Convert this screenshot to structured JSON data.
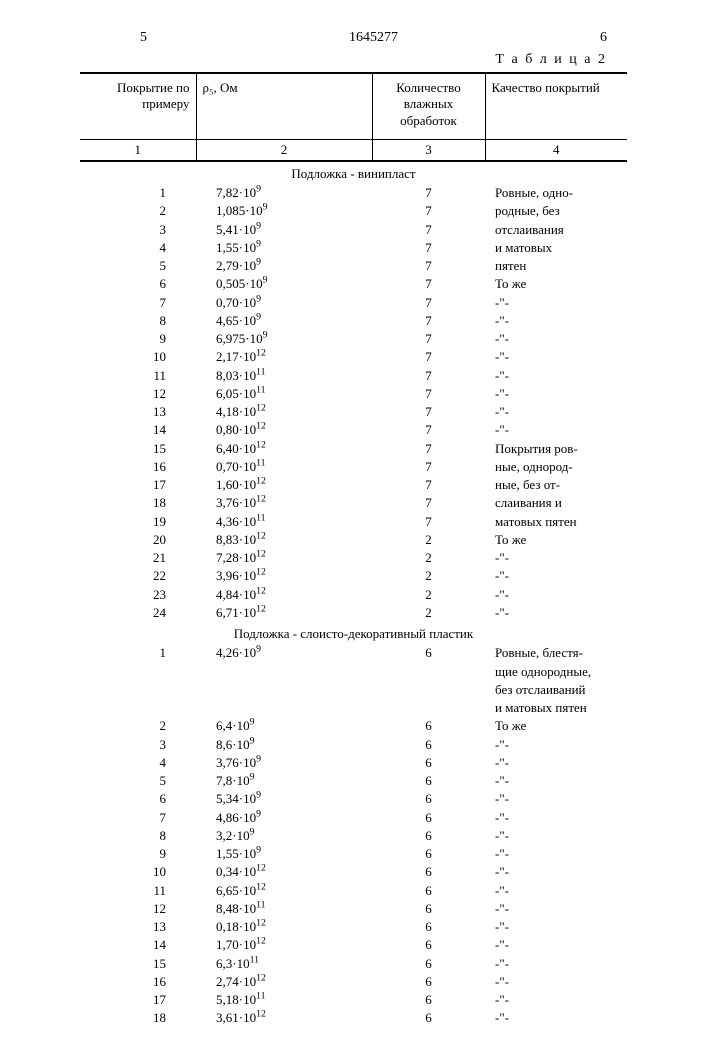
{
  "header": {
    "leftPage": "5",
    "docNumber": "1645277",
    "rightPage": "6"
  },
  "tableLabel": "Т а б л и ц а 2",
  "columns": {
    "h1": "Покрытие по примеру",
    "h2": "ρ₅, Ом",
    "h3": "Количество влажных обработок",
    "h4": "Качество покрытий",
    "n1": "1",
    "n2": "2",
    "n3": "3",
    "n4": "4"
  },
  "section1": "Подложка - винипласт",
  "rows1": [
    {
      "n": "1",
      "rho": "7,82·10⁹",
      "k": "7",
      "q": "Ровные, одно-"
    },
    {
      "n": "2",
      "rho": "1,085·10⁹",
      "k": "7",
      "q": "родные, без"
    },
    {
      "n": "3",
      "rho": "5,41·10⁹",
      "k": "7",
      "q": "отслаивания"
    },
    {
      "n": "4",
      "rho": "1,55·10⁹",
      "k": "7",
      "q": "и матовых"
    },
    {
      "n": "5",
      "rho": "2,79·10⁹",
      "k": "7",
      "q": "пятен"
    },
    {
      "n": "6",
      "rho": "0,505·10⁹",
      "k": "7",
      "q": "То же"
    },
    {
      "n": "7",
      "rho": "0,70·10⁹",
      "k": "7",
      "q": "-\"-"
    },
    {
      "n": "8",
      "rho": "4,65·10⁹",
      "k": "7",
      "q": "-\"-"
    },
    {
      "n": "9",
      "rho": "6,975·10⁹",
      "k": "7",
      "q": "-\"-"
    },
    {
      "n": "10",
      "rho": "2,17·10¹²",
      "k": "7",
      "q": "-\"-"
    },
    {
      "n": "11",
      "rho": "8,03·10¹¹",
      "k": "7",
      "q": "-\"-"
    },
    {
      "n": "12",
      "rho": "6,05·10¹¹",
      "k": "7",
      "q": "-\"-"
    },
    {
      "n": "13",
      "rho": "4,18·10¹²",
      "k": "7",
      "q": "-\"-"
    },
    {
      "n": "14",
      "rho": "0,80·10¹²",
      "k": "7",
      "q": "-\"-"
    },
    {
      "n": "15",
      "rho": "6,40·10¹²",
      "k": "7",
      "q": "Покрытия ров-"
    },
    {
      "n": "16",
      "rho": "0,70·10¹¹",
      "k": "7",
      "q": "ные, однород-"
    },
    {
      "n": "17",
      "rho": "1,60·10¹²",
      "k": "7",
      "q": "ные, без от-"
    },
    {
      "n": "18",
      "rho": "3,76·10¹²",
      "k": "7",
      "q": "слаивания и"
    },
    {
      "n": "19",
      "rho": "4,36·10¹¹",
      "k": "7",
      "q": "матовых пятен"
    },
    {
      "n": "20",
      "rho": "8,83·10¹²",
      "k": "2",
      "q": "То же"
    },
    {
      "n": "21",
      "rho": "7,28·10¹²",
      "k": "2",
      "q": "-\"-"
    },
    {
      "n": "22",
      "rho": "3,96·10¹²",
      "k": "2",
      "q": "-\"-"
    },
    {
      "n": "23",
      "rho": "4,84·10¹²",
      "k": "2",
      "q": "-\"-"
    },
    {
      "n": "24",
      "rho": "6,71·10¹²",
      "k": "2",
      "q": "-\"-"
    }
  ],
  "section2": "Подложка - слоисто-декоративный пластик",
  "rows2": [
    {
      "n": "1",
      "rho": "4,26·10⁹",
      "k": "6",
      "q": "Ровные, блестя-"
    },
    {
      "n": "",
      "rho": "",
      "k": "",
      "q": "щие однородные,"
    },
    {
      "n": "",
      "rho": "",
      "k": "",
      "q": "без отслаиваний"
    },
    {
      "n": "",
      "rho": "",
      "k": "",
      "q": "и матовых пятен"
    },
    {
      "n": "2",
      "rho": "6,4·10⁹",
      "k": "6",
      "q": "То же"
    },
    {
      "n": "3",
      "rho": "8,6·10⁹",
      "k": "6",
      "q": "-\"-"
    },
    {
      "n": "4",
      "rho": "3,76·10⁹",
      "k": "6",
      "q": "-\"-"
    },
    {
      "n": "5",
      "rho": "7,8·10⁹",
      "k": "6",
      "q": "-\"-"
    },
    {
      "n": "6",
      "rho": "5,34·10⁹",
      "k": "6",
      "q": "-\"-"
    },
    {
      "n": "7",
      "rho": "4,86·10⁹",
      "k": "6",
      "q": "-\"-"
    },
    {
      "n": "8",
      "rho": "3,2·10⁹",
      "k": "6",
      "q": "-\"-"
    },
    {
      "n": "9",
      "rho": "1,55·10⁹",
      "k": "6",
      "q": "-\"-"
    },
    {
      "n": "10",
      "rho": "0,34·10¹²",
      "k": "6",
      "q": "-\"-"
    },
    {
      "n": "11",
      "rho": "6,65·10¹²",
      "k": "6",
      "q": "-\"-"
    },
    {
      "n": "12",
      "rho": "8,48·10¹¹",
      "k": "6",
      "q": "-\"-"
    },
    {
      "n": "13",
      "rho": "0,18·10¹²",
      "k": "6",
      "q": "-\"-"
    },
    {
      "n": "14",
      "rho": "1,70·10¹²",
      "k": "6",
      "q": "-\"-"
    },
    {
      "n": "15",
      "rho": "6,3·10¹¹",
      "k": "6",
      "q": "-\"-"
    },
    {
      "n": "16",
      "rho": "2,74·10¹²",
      "k": "6",
      "q": "-\"-"
    },
    {
      "n": "17",
      "rho": "5,18·10¹¹",
      "k": "6",
      "q": "-\"-"
    },
    {
      "n": "18",
      "rho": "3,61·10¹²",
      "k": "6",
      "q": "-\"-"
    }
  ]
}
